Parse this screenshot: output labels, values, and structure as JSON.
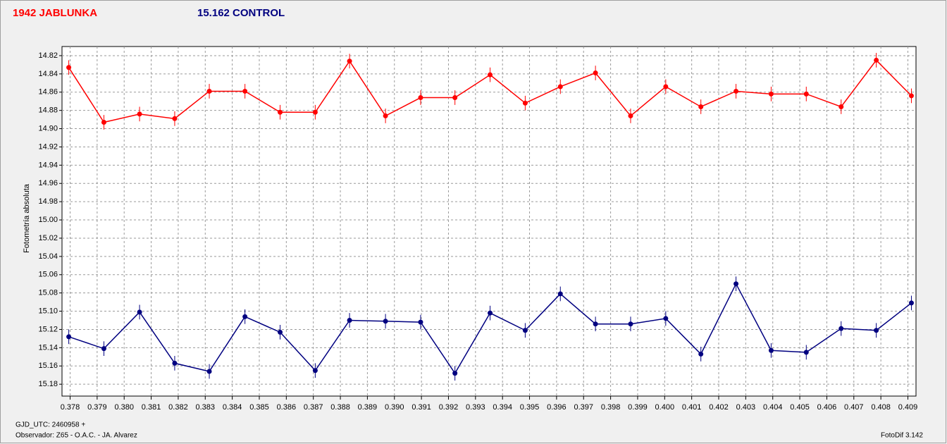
{
  "chart_data": {
    "type": "line",
    "titles": [
      {
        "text": "1942 JABLUNKA",
        "color": "#ff0000"
      },
      {
        "text": "15.162 CONTROL",
        "color": "#000080"
      }
    ],
    "ylabel": "Fotometría absoluta",
    "footer": [
      "GJD_UTC: 2460958 +",
      "Observador: Z65 - O.A.C. - JA. Alvarez",
      "FotoDif 3.142"
    ],
    "y_inverted": true,
    "grid": true,
    "xlim": [
      0.3777,
      0.4093
    ],
    "ylim": [
      14.81,
      15.193
    ],
    "xticks": [
      0.378,
      0.379,
      {
        "value": 0.38,
        "label": "0.380"
      },
      0.381,
      0.382,
      0.383,
      0.384,
      0.385,
      0.386,
      0.387,
      0.388,
      0.389,
      {
        "value": 0.39,
        "label": "0.390"
      },
      0.391,
      0.392,
      0.393,
      0.394,
      0.395,
      0.396,
      0.397,
      0.398,
      0.399,
      {
        "value": 0.4,
        "label": "0.400"
      },
      0.401,
      0.402,
      0.403,
      0.404,
      0.405,
      0.406,
      0.407,
      0.408,
      0.409
    ],
    "yticks": [
      14.82,
      14.84,
      14.86,
      14.88,
      {
        "value": 14.9,
        "label": "14.90"
      },
      14.92,
      14.94,
      14.96,
      14.98,
      {
        "value": 15.0,
        "label": "15.00"
      },
      15.02,
      15.04,
      15.06,
      15.08,
      {
        "value": 15.1,
        "label": "15.10"
      },
      15.12,
      15.14,
      15.16,
      15.18
    ],
    "x": [
      0.37795,
      0.37925,
      0.38057,
      0.38187,
      0.38315,
      0.38447,
      0.38577,
      0.38707,
      0.38834,
      0.38967,
      0.39097,
      0.39224,
      0.39354,
      0.39484,
      0.39614,
      0.39744,
      0.39874,
      0.40004,
      0.40134,
      0.40264,
      0.40394,
      0.40524,
      0.40653,
      0.40783,
      0.40913
    ],
    "series": [
      {
        "name": "1942 JABLUNKA",
        "color": "#ff0000",
        "error": 0.008,
        "values": [
          14.833,
          14.893,
          14.884,
          14.889,
          14.859,
          14.859,
          14.882,
          14.882,
          14.826,
          14.886,
          14.866,
          14.866,
          14.841,
          14.872,
          14.854,
          14.839,
          14.886,
          14.854,
          14.876,
          14.859,
          14.862,
          14.862,
          14.876,
          14.825,
          14.864
        ]
      },
      {
        "name": "15.162 CONTROL",
        "color": "#000080",
        "error": 0.008,
        "values": [
          15.128,
          15.141,
          15.101,
          15.157,
          15.166,
          15.106,
          15.123,
          15.165,
          15.11,
          15.111,
          15.112,
          15.168,
          15.102,
          15.121,
          15.081,
          15.114,
          15.114,
          15.108,
          15.147,
          15.07,
          15.143,
          15.145,
          15.119,
          15.121,
          15.091
        ]
      }
    ]
  }
}
